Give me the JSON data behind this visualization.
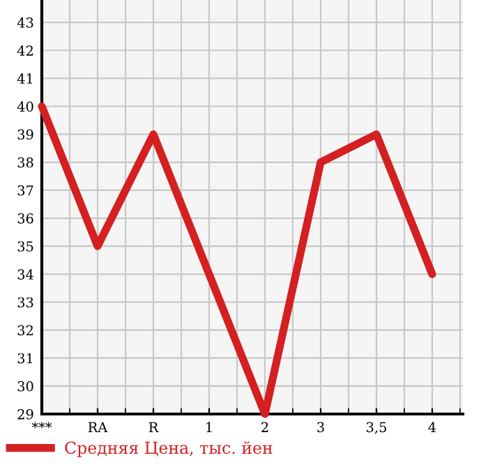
{
  "chart_data": {
    "type": "line",
    "categories": [
      "***",
      "RA",
      "R",
      "1",
      "2",
      "3",
      "3,5",
      "4"
    ],
    "series": [
      {
        "name": "Средняя Цена, тыс. йен",
        "color": "#d42020",
        "values": [
          40,
          35,
          39,
          34,
          29,
          38,
          39,
          34
        ]
      }
    ],
    "ylim": [
      29,
      43.8
    ],
    "yticks": [
      29,
      30,
      31,
      32,
      33,
      34,
      35,
      36,
      37,
      38,
      39,
      40,
      41,
      42,
      43
    ],
    "grid": true,
    "legend": "bottom",
    "marker": "none",
    "line_style": "solid"
  }
}
